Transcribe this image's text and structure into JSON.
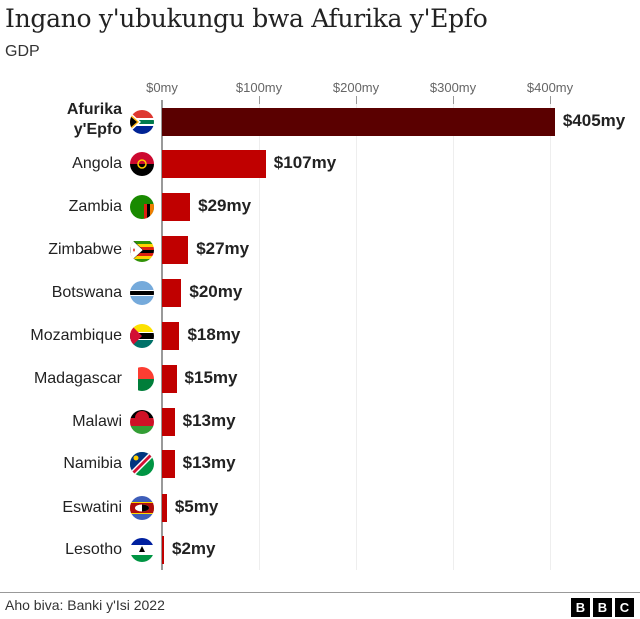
{
  "title": "Ingano y'ubukungu bwa Afurika y'Epfo",
  "subtitle": "GDP",
  "axis": {
    "ticks": [
      {
        "label": "$0my",
        "value": 0
      },
      {
        "label": "$100my",
        "value": 100
      },
      {
        "label": "$200my",
        "value": 200
      },
      {
        "label": "$300my",
        "value": 300
      },
      {
        "label": "$400my",
        "value": 400
      }
    ]
  },
  "rows": [
    {
      "label_line1": "Afurika",
      "label_line2": "y'Epfo",
      "value": 405,
      "value_label": "$405my",
      "highlight": true,
      "flag": "south-africa-flag"
    },
    {
      "label": "Angola",
      "value": 107,
      "value_label": "$107my",
      "flag": "angola-flag"
    },
    {
      "label": "Zambia",
      "value": 29,
      "value_label": "$29my",
      "flag": "zambia-flag"
    },
    {
      "label": "Zimbabwe",
      "value": 27,
      "value_label": "$27my",
      "flag": "zimbabwe-flag"
    },
    {
      "label": "Botswana",
      "value": 20,
      "value_label": "$20my",
      "flag": "botswana-flag"
    },
    {
      "label": "Mozambique",
      "value": 18,
      "value_label": "$18my",
      "flag": "mozambique-flag"
    },
    {
      "label": "Madagascar",
      "value": 15,
      "value_label": "$15my",
      "flag": "madagascar-flag"
    },
    {
      "label": "Malawi",
      "value": 13,
      "value_label": "$13my",
      "flag": "malawi-flag"
    },
    {
      "label": "Namibia",
      "value": 13,
      "value_label": "$13my",
      "flag": "namibia-flag"
    },
    {
      "label": "Eswatini",
      "value": 5,
      "value_label": "$5my",
      "flag": "eswatini-flag"
    },
    {
      "label": "Lesotho",
      "value": 2,
      "value_label": "$2my",
      "flag": "lesotho-flag"
    }
  ],
  "colors": {
    "highlight_bar": "#5a0000",
    "bar": "#c00000"
  },
  "footer": {
    "source": "Aho biva: Banki y'Isi 2022",
    "logo": [
      "B",
      "B",
      "C"
    ]
  },
  "chart_data": {
    "type": "bar",
    "orientation": "horizontal",
    "title": "Ingano y'ubukungu bwa Afurika y'Epfo",
    "subtitle": "GDP",
    "categories": [
      "Afurika y'Epfo",
      "Angola",
      "Zambia",
      "Zimbabwe",
      "Botswana",
      "Mozambique",
      "Madagascar",
      "Malawi",
      "Namibia",
      "Eswatini",
      "Lesotho"
    ],
    "values": [
      405,
      107,
      29,
      27,
      20,
      18,
      15,
      13,
      13,
      5,
      2
    ],
    "value_labels": [
      "$405my",
      "$107my",
      "$29my",
      "$27my",
      "$20my",
      "$18my",
      "$15my",
      "$13my",
      "$13my",
      "$5my",
      "$2my"
    ],
    "xlabel": "",
    "ylabel": "",
    "xlim": [
      0,
      410
    ],
    "xticks": [
      "$0my",
      "$100my",
      "$200my",
      "$300my",
      "$400my"
    ],
    "grid": true,
    "source": "Aho biva: Banki y'Isi 2022"
  }
}
